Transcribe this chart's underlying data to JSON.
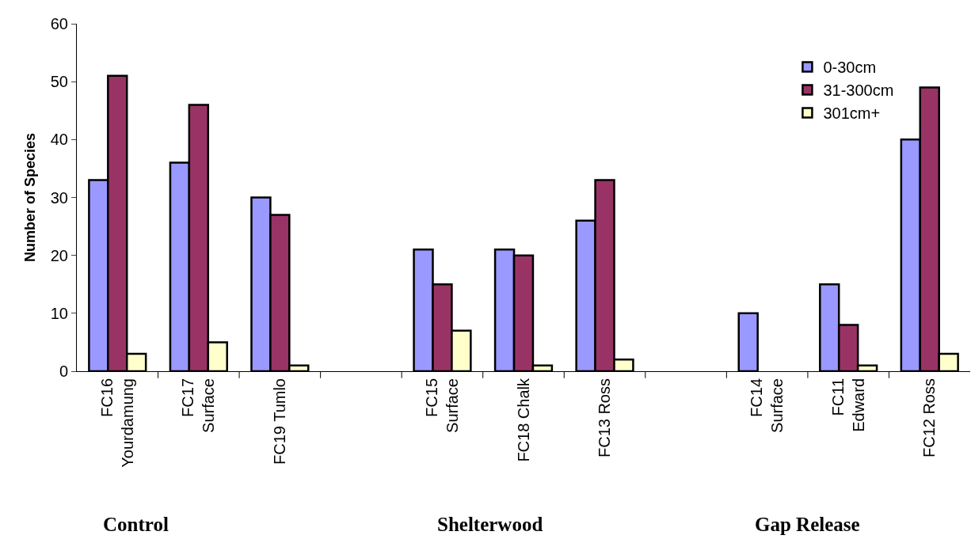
{
  "chart_data": {
    "type": "bar",
    "ylabel": "Number of Species",
    "categories": [
      "FC16 Yourdamung",
      "FC17 Surface",
      "FC19 Tumlo",
      null,
      "FC15 Surface",
      "FC18 Chalk",
      "FC13 Ross",
      null,
      "FC14 Surface",
      "FC11 Edward",
      "FC12 Ross"
    ],
    "series": [
      {
        "name": "0-30cm",
        "color": "#9999ff",
        "values": [
          33,
          36,
          30,
          null,
          21,
          21,
          26,
          null,
          10,
          15,
          40
        ]
      },
      {
        "name": "31-300cm",
        "color": "#993366",
        "values": [
          51,
          46,
          27,
          null,
          15,
          20,
          33,
          null,
          null,
          8,
          49
        ]
      },
      {
        "name": "301cm+",
        "color": "#ffffcc",
        "values": [
          3,
          5,
          1,
          null,
          7,
          1,
          2,
          null,
          null,
          1,
          3
        ]
      }
    ],
    "ylim": [
      0,
      60
    ],
    "yticks": [
      0,
      10,
      20,
      30,
      40,
      50,
      60
    ],
    "grid": false,
    "legend": "top right",
    "annotations": [
      "Control",
      "Shelterwood",
      "Gap Release"
    ]
  }
}
